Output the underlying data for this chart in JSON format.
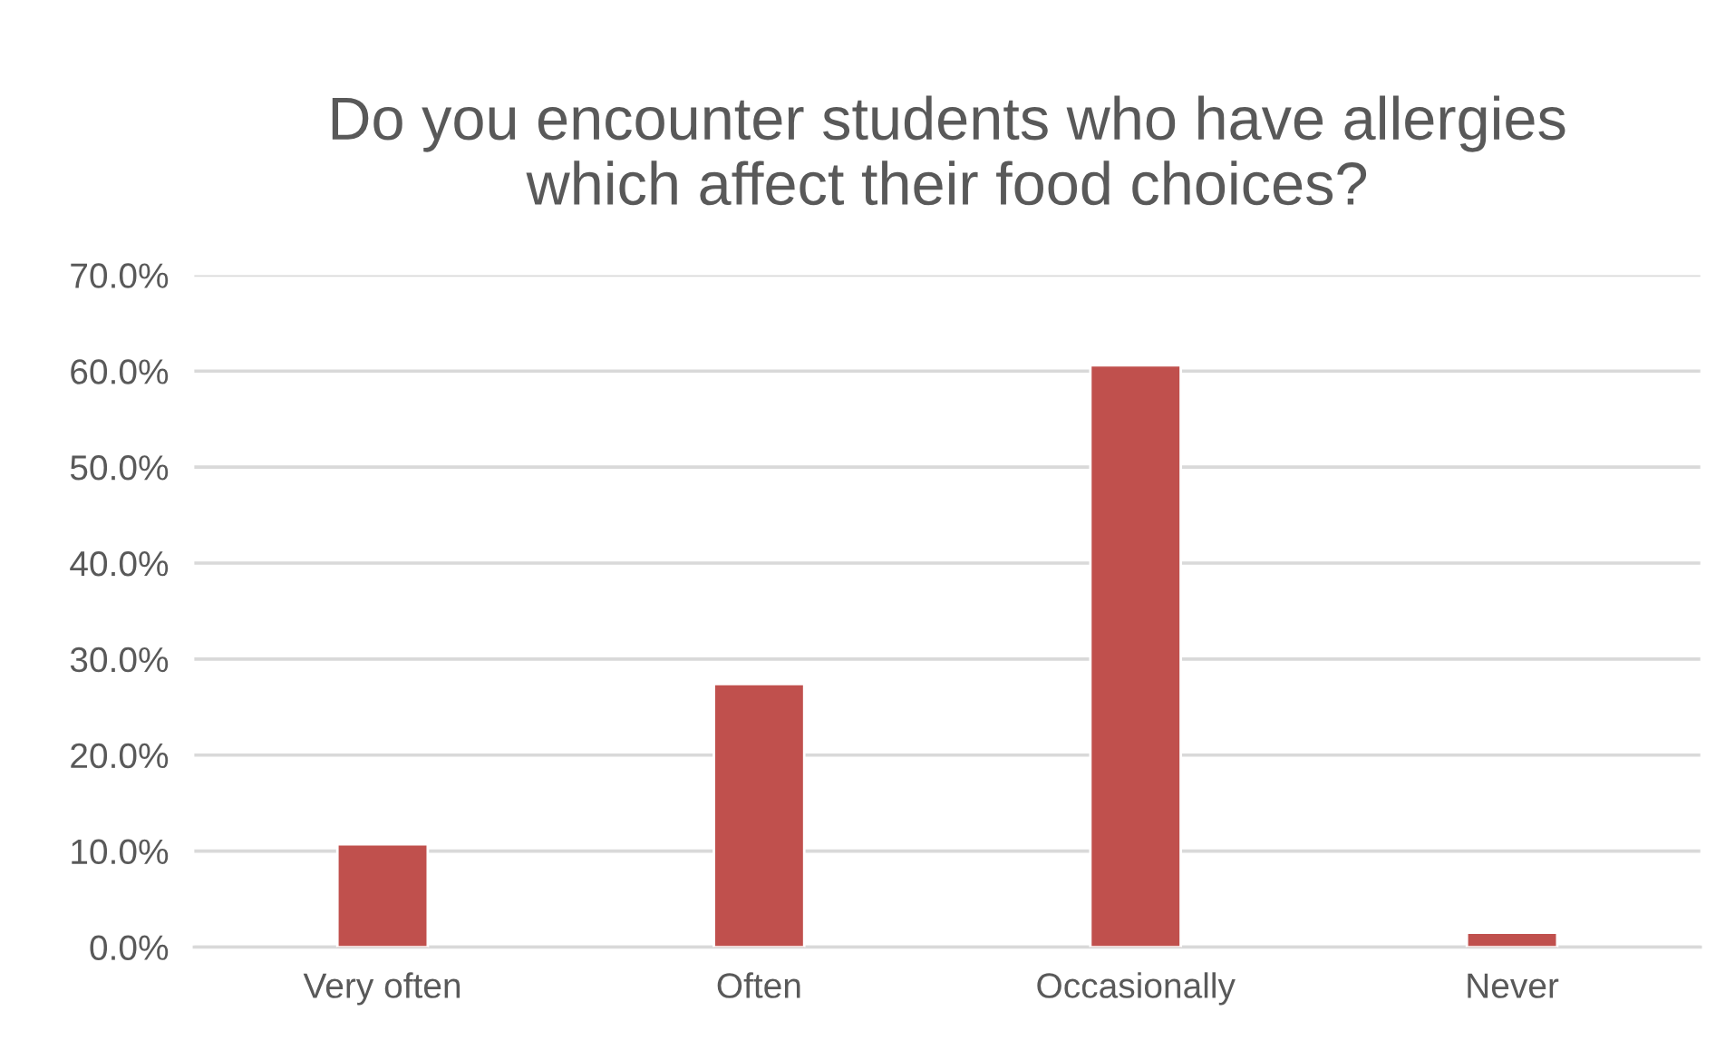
{
  "chart_data": {
    "type": "bar",
    "title": "Do you encounter students who have allergies\nwhich affect their food choices?",
    "categories": [
      "Very often",
      "Often",
      "Occasionally",
      "Never"
    ],
    "values": [
      10.7,
      27.4,
      60.6,
      1.5
    ],
    "color": "#c0504d",
    "ylim": [
      0,
      70
    ],
    "yticks": [
      {
        "value": 0,
        "label": "0.0%"
      },
      {
        "value": 10,
        "label": "10.0%"
      },
      {
        "value": 20,
        "label": "20.0%"
      },
      {
        "value": 30,
        "label": "30.0%"
      },
      {
        "value": 40,
        "label": "40.0%"
      },
      {
        "value": 50,
        "label": "50.0%"
      },
      {
        "value": 60,
        "label": "60.0%"
      },
      {
        "value": 70,
        "label": "70.0%"
      }
    ],
    "grid": "y",
    "legend": false
  }
}
